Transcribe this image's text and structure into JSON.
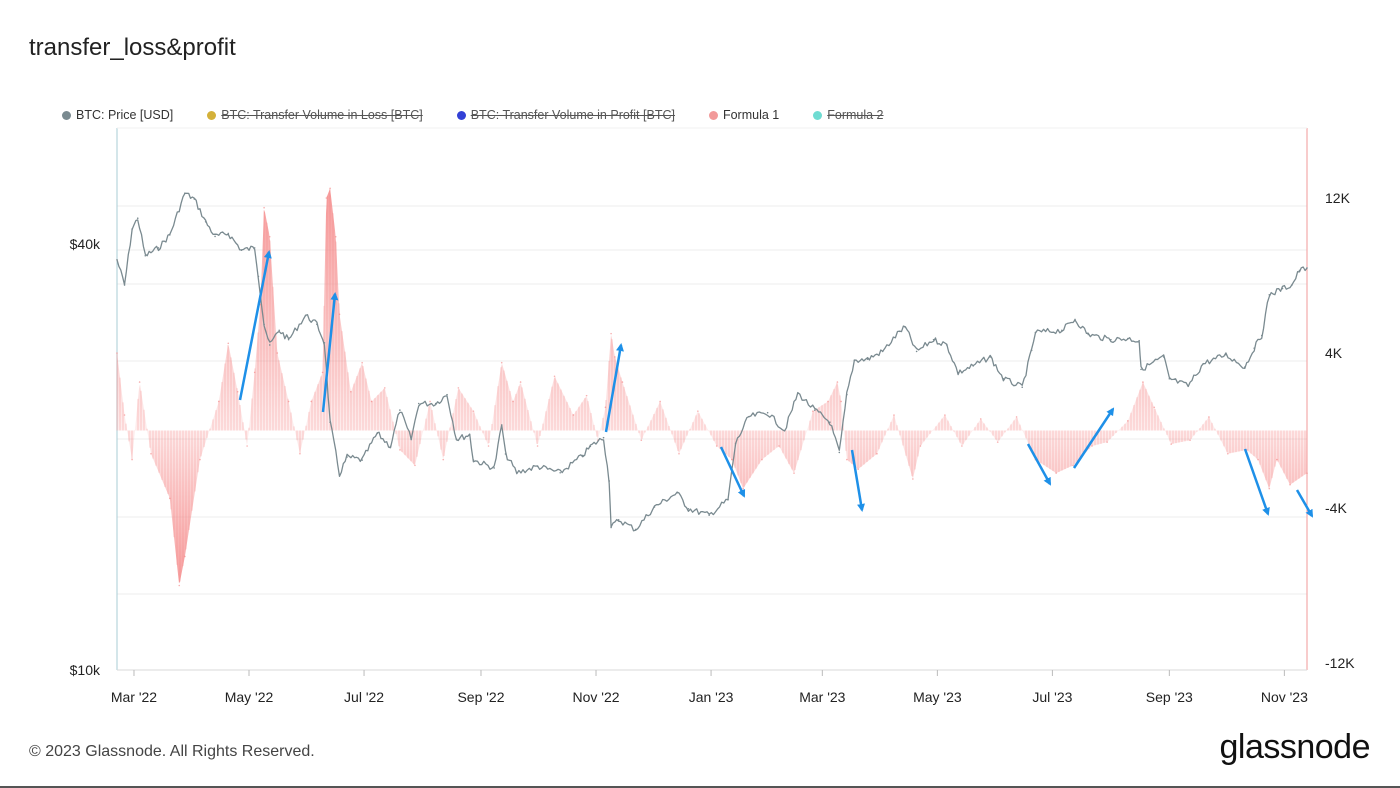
{
  "title": "transfer_loss&profit",
  "legend": [
    {
      "label": "BTC: Price [USD]",
      "color": "#7a8a90",
      "disabled": false
    },
    {
      "label": "BTC: Transfer Volume in Loss [BTC]",
      "color": "#d4b13a",
      "disabled": true
    },
    {
      "label": "BTC: Transfer Volume in Profit [BTC]",
      "color": "#3341d6",
      "disabled": true
    },
    {
      "label": "Formula 1",
      "color": "#f29a9a",
      "disabled": false
    },
    {
      "label": "Formula 2",
      "color": "#6fdcd2",
      "disabled": true
    }
  ],
  "footer": "© 2023 Glassnode. All Rights Reserved.",
  "brand": "glassnode",
  "chart_data": {
    "type": "line",
    "title": "transfer_loss&profit",
    "x_tick_labels": [
      "Mar '22",
      "May '22",
      "Jul '22",
      "Sep '22",
      "Nov '22",
      "Jan '23",
      "Mar '23",
      "May '23",
      "Jul '23",
      "Sep '23",
      "Nov '23"
    ],
    "x_range": [
      "2022-02-20",
      "2023-11-13"
    ],
    "y_left": {
      "label": "BTC: Price [USD]",
      "scale": "log",
      "ticks": [
        {
          "value": 10000,
          "label": "$10k"
        },
        {
          "value": 40000,
          "label": "$40k"
        }
      ],
      "range": [
        10000,
        60000
      ]
    },
    "y_right": {
      "label": "Formula 1",
      "ticks": [
        {
          "value": 12000,
          "label": "12K"
        },
        {
          "value": 4000,
          "label": "4K"
        },
        {
          "value": -4000,
          "label": "-4K"
        },
        {
          "value": -12000,
          "label": "-12K"
        }
      ],
      "range": [
        -12000,
        16000
      ]
    },
    "series": [
      {
        "name": "BTC: Price [USD]",
        "axis": "left",
        "color": "#7a8a90",
        "points": [
          [
            "2022-02-20",
            38000
          ],
          [
            "2022-02-24",
            35000
          ],
          [
            "2022-02-28",
            42000
          ],
          [
            "2022-03-03",
            43500
          ],
          [
            "2022-03-07",
            38500
          ],
          [
            "2022-03-14",
            39500
          ],
          [
            "2022-03-20",
            41200
          ],
          [
            "2022-03-28",
            47200
          ],
          [
            "2022-04-02",
            46300
          ],
          [
            "2022-04-08",
            43000
          ],
          [
            "2022-04-13",
            41000
          ],
          [
            "2022-04-20",
            41400
          ],
          [
            "2022-04-27",
            39200
          ],
          [
            "2022-05-04",
            39500
          ],
          [
            "2022-05-06",
            36000
          ],
          [
            "2022-05-09",
            30800
          ],
          [
            "2022-05-12",
            28800
          ],
          [
            "2022-05-17",
            30200
          ],
          [
            "2022-05-22",
            29300
          ],
          [
            "2022-05-31",
            31700
          ],
          [
            "2022-06-06",
            30800
          ],
          [
            "2022-06-10",
            29000
          ],
          [
            "2022-06-13",
            22400
          ],
          [
            "2022-06-18",
            18900
          ],
          [
            "2022-06-22",
            20000
          ],
          [
            "2022-06-30",
            19800
          ],
          [
            "2022-07-08",
            21600
          ],
          [
            "2022-07-15",
            20700
          ],
          [
            "2022-07-20",
            23300
          ],
          [
            "2022-07-26",
            21200
          ],
          [
            "2022-07-30",
            23800
          ],
          [
            "2022-08-08",
            23800
          ],
          [
            "2022-08-14",
            24500
          ],
          [
            "2022-08-19",
            21200
          ],
          [
            "2022-08-26",
            21500
          ],
          [
            "2022-08-28",
            19800
          ],
          [
            "2022-09-08",
            19300
          ],
          [
            "2022-09-12",
            22200
          ],
          [
            "2022-09-14",
            20200
          ],
          [
            "2022-09-20",
            19000
          ],
          [
            "2022-10-01",
            19400
          ],
          [
            "2022-10-13",
            19000
          ],
          [
            "2022-10-25",
            20100
          ],
          [
            "2022-10-29",
            20700
          ],
          [
            "2022-11-05",
            21300
          ],
          [
            "2022-11-08",
            18500
          ],
          [
            "2022-11-09",
            15900
          ],
          [
            "2022-11-13",
            16300
          ],
          [
            "2022-11-22",
            15800
          ],
          [
            "2022-12-02",
            17000
          ],
          [
            "2022-12-14",
            17800
          ],
          [
            "2022-12-20",
            16900
          ],
          [
            "2022-12-31",
            16550
          ],
          [
            "2023-01-10",
            17400
          ],
          [
            "2023-01-14",
            20900
          ],
          [
            "2023-01-21",
            22800
          ],
          [
            "2023-01-31",
            23100
          ],
          [
            "2023-02-09",
            21800
          ],
          [
            "2023-02-16",
            24600
          ],
          [
            "2023-02-25",
            23300
          ],
          [
            "2023-03-05",
            22400
          ],
          [
            "2023-03-10",
            20300
          ],
          [
            "2023-03-14",
            24500
          ],
          [
            "2023-03-18",
            27400
          ],
          [
            "2023-03-25",
            27500
          ],
          [
            "2023-04-02",
            28200
          ],
          [
            "2023-04-11",
            30100
          ],
          [
            "2023-04-14",
            30500
          ],
          [
            "2023-04-20",
            28200
          ],
          [
            "2023-04-29",
            29300
          ],
          [
            "2023-05-06",
            28800
          ],
          [
            "2023-05-12",
            26300
          ],
          [
            "2023-05-20",
            26900
          ],
          [
            "2023-05-29",
            27700
          ],
          [
            "2023-06-05",
            25800
          ],
          [
            "2023-06-15",
            25100
          ],
          [
            "2023-06-20",
            28300
          ],
          [
            "2023-06-22",
            30000
          ],
          [
            "2023-07-06",
            30200
          ],
          [
            "2023-07-13",
            31300
          ],
          [
            "2023-07-20",
            29800
          ],
          [
            "2023-08-01",
            29300
          ],
          [
            "2023-08-10",
            29400
          ],
          [
            "2023-08-16",
            29200
          ],
          [
            "2023-08-17",
            26600
          ],
          [
            "2023-08-29",
            27700
          ],
          [
            "2023-09-01",
            25800
          ],
          [
            "2023-09-11",
            25200
          ],
          [
            "2023-09-19",
            27100
          ],
          [
            "2023-10-01",
            27900
          ],
          [
            "2023-10-11",
            26800
          ],
          [
            "2023-10-16",
            28500
          ],
          [
            "2023-10-20",
            29700
          ],
          [
            "2023-10-24",
            33900
          ],
          [
            "2023-10-31",
            34600
          ],
          [
            "2023-11-05",
            35000
          ],
          [
            "2023-11-09",
            36700
          ],
          [
            "2023-11-13",
            37000
          ]
        ]
      },
      {
        "name": "Formula 1",
        "axis": "right",
        "color": "#f29a9a",
        "points": [
          [
            "2022-02-20",
            4000
          ],
          [
            "2022-02-24",
            800
          ],
          [
            "2022-02-28",
            -1500
          ],
          [
            "2022-03-04",
            2500
          ],
          [
            "2022-03-10",
            -1200
          ],
          [
            "2022-03-20",
            -3500
          ],
          [
            "2022-03-25",
            -8000
          ],
          [
            "2022-03-28",
            -6500
          ],
          [
            "2022-04-05",
            -1500
          ],
          [
            "2022-04-15",
            1500
          ],
          [
            "2022-04-20",
            4500
          ],
          [
            "2022-04-25",
            2000
          ],
          [
            "2022-04-30",
            -800
          ],
          [
            "2022-05-04",
            3000
          ],
          [
            "2022-05-07",
            6500
          ],
          [
            "2022-05-09",
            11500
          ],
          [
            "2022-05-12",
            10000
          ],
          [
            "2022-05-16",
            4000
          ],
          [
            "2022-05-22",
            1500
          ],
          [
            "2022-05-28",
            -1200
          ],
          [
            "2022-06-03",
            1500
          ],
          [
            "2022-06-09",
            3000
          ],
          [
            "2022-06-11",
            12000
          ],
          [
            "2022-06-13",
            12500
          ],
          [
            "2022-06-16",
            10000
          ],
          [
            "2022-06-18",
            6000
          ],
          [
            "2022-06-24",
            2000
          ],
          [
            "2022-06-30",
            3500
          ],
          [
            "2022-07-05",
            1500
          ],
          [
            "2022-07-12",
            2200
          ],
          [
            "2022-07-20",
            -1000
          ],
          [
            "2022-07-28",
            -1800
          ],
          [
            "2022-08-05",
            1500
          ],
          [
            "2022-08-12",
            -1500
          ],
          [
            "2022-08-20",
            2200
          ],
          [
            "2022-08-28",
            1000
          ],
          [
            "2022-09-05",
            -800
          ],
          [
            "2022-09-12",
            3500
          ],
          [
            "2022-09-18",
            1500
          ],
          [
            "2022-09-22",
            2500
          ],
          [
            "2022-10-01",
            -800
          ],
          [
            "2022-10-10",
            2800
          ],
          [
            "2022-10-20",
            800
          ],
          [
            "2022-10-27",
            1800
          ],
          [
            "2022-11-02",
            -500
          ],
          [
            "2022-11-06",
            1200
          ],
          [
            "2022-11-09",
            5000
          ],
          [
            "2022-11-11",
            3800
          ],
          [
            "2022-11-15",
            2500
          ],
          [
            "2022-11-25",
            -500
          ],
          [
            "2022-12-05",
            1500
          ],
          [
            "2022-12-15",
            -1200
          ],
          [
            "2022-12-25",
            1000
          ],
          [
            "2023-01-04",
            -800
          ],
          [
            "2023-01-12",
            -1500
          ],
          [
            "2023-01-18",
            -3000
          ],
          [
            "2023-01-28",
            -1500
          ],
          [
            "2023-02-06",
            -800
          ],
          [
            "2023-02-14",
            -2200
          ],
          [
            "2023-02-24",
            1000
          ],
          [
            "2023-03-04",
            1500
          ],
          [
            "2023-03-09",
            2500
          ],
          [
            "2023-03-11",
            1500
          ],
          [
            "2023-03-14",
            -1500
          ],
          [
            "2023-03-20",
            -2000
          ],
          [
            "2023-03-30",
            -1200
          ],
          [
            "2023-04-08",
            800
          ],
          [
            "2023-04-18",
            -2500
          ],
          [
            "2023-04-22",
            -800
          ],
          [
            "2023-05-05",
            800
          ],
          [
            "2023-05-14",
            -800
          ],
          [
            "2023-05-24",
            600
          ],
          [
            "2023-06-02",
            -600
          ],
          [
            "2023-06-12",
            700
          ],
          [
            "2023-06-22",
            -1500
          ],
          [
            "2023-07-03",
            -2200
          ],
          [
            "2023-07-12",
            -1800
          ],
          [
            "2023-07-22",
            -800
          ],
          [
            "2023-07-30",
            -600
          ],
          [
            "2023-08-10",
            500
          ],
          [
            "2023-08-18",
            2500
          ],
          [
            "2023-08-24",
            1200
          ],
          [
            "2023-09-02",
            -700
          ],
          [
            "2023-09-12",
            -500
          ],
          [
            "2023-09-22",
            700
          ],
          [
            "2023-10-02",
            -1200
          ],
          [
            "2023-10-12",
            -1000
          ],
          [
            "2023-10-18",
            -1500
          ],
          [
            "2023-10-24",
            -3000
          ],
          [
            "2023-10-28",
            -1500
          ],
          [
            "2023-11-04",
            -2800
          ],
          [
            "2023-11-13",
            -2200
          ]
        ]
      }
    ]
  }
}
